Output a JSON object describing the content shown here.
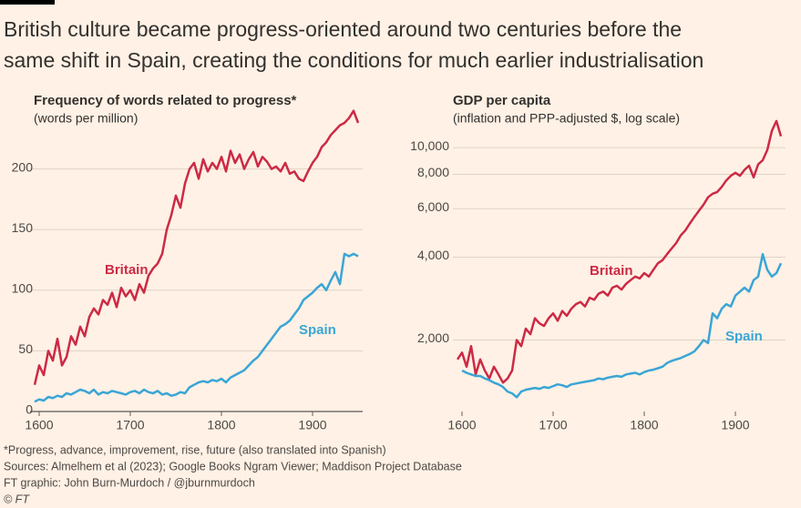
{
  "header": {
    "title_lines": [
      "British culture became progress-oriented around two centuries before the",
      "same shift in Spain, creating the conditions for much earlier industrialisation"
    ]
  },
  "chart_data": [
    {
      "type": "line",
      "title": "Frequency of words related to progress*",
      "subtitle": "(words per million)",
      "x": [
        1595,
        1600,
        1605,
        1610,
        1615,
        1620,
        1625,
        1630,
        1635,
        1640,
        1645,
        1650,
        1655,
        1660,
        1665,
        1670,
        1675,
        1680,
        1685,
        1690,
        1695,
        1700,
        1705,
        1710,
        1715,
        1720,
        1725,
        1730,
        1735,
        1740,
        1745,
        1750,
        1755,
        1760,
        1765,
        1770,
        1775,
        1780,
        1785,
        1790,
        1795,
        1800,
        1805,
        1810,
        1815,
        1820,
        1825,
        1830,
        1835,
        1840,
        1845,
        1850,
        1855,
        1860,
        1865,
        1870,
        1875,
        1880,
        1885,
        1890,
        1895,
        1900,
        1905,
        1910,
        1915,
        1920,
        1925,
        1930,
        1935,
        1940,
        1945,
        1950
      ],
      "series": [
        {
          "name": "Britain",
          "color": "#cc2a45",
          "values": [
            22,
            38,
            30,
            50,
            42,
            60,
            38,
            45,
            62,
            55,
            70,
            62,
            78,
            85,
            80,
            92,
            88,
            98,
            86,
            102,
            95,
            100,
            92,
            105,
            98,
            112,
            118,
            122,
            130,
            150,
            162,
            178,
            168,
            188,
            200,
            205,
            192,
            208,
            198,
            205,
            200,
            210,
            198,
            215,
            205,
            212,
            200,
            208,
            214,
            202,
            210,
            206,
            200,
            202,
            198,
            205,
            196,
            198,
            192,
            190,
            198,
            205,
            210,
            218,
            222,
            228,
            232,
            236,
            238,
            242,
            248,
            238
          ]
        },
        {
          "name": "Spain",
          "color": "#3aa5d6",
          "values": [
            8,
            10,
            9,
            12,
            11,
            13,
            12,
            15,
            14,
            16,
            18,
            17,
            15,
            18,
            14,
            16,
            15,
            17,
            16,
            15,
            14,
            16,
            17,
            15,
            18,
            16,
            15,
            17,
            14,
            15,
            13,
            14,
            16,
            15,
            20,
            22,
            24,
            25,
            24,
            26,
            25,
            27,
            24,
            28,
            30,
            32,
            34,
            38,
            42,
            45,
            50,
            55,
            60,
            65,
            70,
            72,
            75,
            80,
            85,
            92,
            95,
            98,
            102,
            105,
            100,
            108,
            115,
            105,
            130,
            128,
            130,
            128
          ]
        }
      ],
      "xlim": [
        1590,
        1955
      ],
      "xticks": [
        1600,
        1700,
        1800,
        1900
      ],
      "ylim": [
        0,
        250
      ],
      "yticks": [
        0,
        50,
        100,
        150,
        200
      ],
      "grid": true,
      "log_y": false
    },
    {
      "type": "line",
      "title": "GDP per capita",
      "subtitle": "(inflation and PPP-adjusted $, log scale)",
      "x": [
        1595,
        1600,
        1605,
        1610,
        1615,
        1620,
        1625,
        1630,
        1635,
        1640,
        1645,
        1650,
        1655,
        1660,
        1665,
        1670,
        1675,
        1680,
        1685,
        1690,
        1695,
        1700,
        1705,
        1710,
        1715,
        1720,
        1725,
        1730,
        1735,
        1740,
        1745,
        1750,
        1755,
        1760,
        1765,
        1770,
        1775,
        1780,
        1785,
        1790,
        1795,
        1800,
        1805,
        1810,
        1815,
        1820,
        1825,
        1830,
        1835,
        1840,
        1845,
        1850,
        1855,
        1860,
        1865,
        1870,
        1875,
        1880,
        1885,
        1890,
        1895,
        1900,
        1905,
        1910,
        1915,
        1920,
        1925,
        1930,
        1935,
        1940,
        1945,
        1950
      ],
      "series": [
        {
          "name": "Britain",
          "color": "#cc2a45",
          "values": [
            1700,
            1800,
            1600,
            1900,
            1500,
            1700,
            1550,
            1450,
            1600,
            1500,
            1400,
            1450,
            1550,
            2000,
            1900,
            2200,
            2100,
            2400,
            2300,
            2250,
            2400,
            2500,
            2350,
            2550,
            2450,
            2600,
            2700,
            2750,
            2650,
            2850,
            2800,
            2950,
            3000,
            2900,
            3100,
            3150,
            3050,
            3200,
            3300,
            3400,
            3350,
            3500,
            3400,
            3600,
            3800,
            3900,
            4100,
            4300,
            4500,
            4800,
            5000,
            5300,
            5600,
            5900,
            6200,
            6600,
            6800,
            6900,
            7200,
            7600,
            7900,
            8100,
            7900,
            8300,
            8600,
            7800,
            8700,
            9000,
            9800,
            11500,
            12500,
            11000
          ]
        },
        {
          "name": "Spain",
          "color": "#3aa5d6",
          "values": [
            null,
            1550,
            1520,
            1500,
            1480,
            1480,
            1450,
            1430,
            1400,
            1380,
            1350,
            1300,
            1280,
            1240,
            1300,
            1320,
            1330,
            1340,
            1330,
            1350,
            1340,
            1360,
            1380,
            1370,
            1350,
            1380,
            1390,
            1400,
            1410,
            1420,
            1430,
            1450,
            1440,
            1460,
            1470,
            1480,
            1470,
            1500,
            1510,
            1520,
            1500,
            1530,
            1550,
            1560,
            1580,
            1600,
            1650,
            1680,
            1700,
            1720,
            1750,
            1780,
            1820,
            1900,
            2000,
            1950,
            2500,
            2400,
            2600,
            2700,
            2650,
            2900,
            3000,
            3100,
            3000,
            3300,
            3400,
            4100,
            3600,
            3400,
            3500,
            3800
          ]
        }
      ],
      "xlim": [
        1590,
        1955
      ],
      "xticks": [
        1600,
        1700,
        1800,
        1900
      ],
      "ylim": [
        1100,
        14000
      ],
      "yticks": [
        {
          "value": 2000,
          "label": "2,000"
        },
        {
          "value": 4000,
          "label": "4,000"
        },
        {
          "value": 6000,
          "label": "6,000"
        },
        {
          "value": 8000,
          "label": "8,000"
        },
        {
          "value": 10000,
          "label": "10,000"
        }
      ],
      "grid": true,
      "log_y": true
    }
  ],
  "footer": {
    "notes": [
      "*Progress, advance, improvement, rise, future (also translated into Spanish)",
      "Sources: Almelhem et al (2023); Google Books Ngram Viewer; Maddison Project Database",
      "FT graphic: John Burn-Murdoch / @jburnmurdoch",
      "© FT"
    ]
  }
}
